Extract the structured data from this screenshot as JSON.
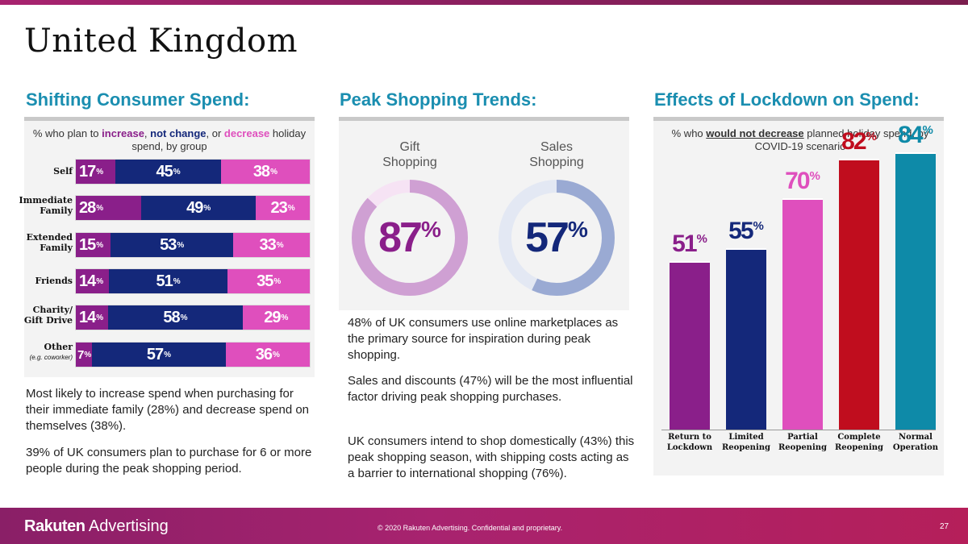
{
  "title": "United Kingdom",
  "sections": {
    "consumer_spend": "Shifting Consumer Spend:",
    "peak_trends": "Peak Shopping Trends:",
    "lockdown": "Effects of Lockdown on Spend:"
  },
  "colors": {
    "increase": "#8a1f8a",
    "not_change": "#14287a",
    "decrease": "#df4fbd",
    "accent_title": "#1a8eb0"
  },
  "subtitle_left": {
    "p1": "% who plan to ",
    "increase": "increase",
    "c1": ", ",
    "not_change": "not change",
    "c2": ", or ",
    "decrease": "decrease",
    "p2": " holiday spend, by group"
  },
  "subtitle_right": {
    "p1": "% who ",
    "would_not_decrease": "would not decrease",
    "p2": " planned holiday spend, by COVID-19 scenario"
  },
  "pct_symbol": "%",
  "left_text": [
    "Most likely to increase spend when purchasing for their immediate family (28%) and decrease spend on themselves (38%).",
    "39% of UK consumers plan to purchase for 6 or more people during the peak shopping period."
  ],
  "mid_text": [
    "48% of UK consumers use online marketplaces as the primary source for inspiration during peak shopping.",
    "Sales and discounts (47%) will be the most influential factor driving peak shopping purchases.",
    "UK consumers intend to shop domestically (43%) this peak shopping season, with shipping costs acting as a barrier to international shopping (76%)."
  ],
  "chart_data": [
    {
      "type": "bar",
      "orientation": "horizontal",
      "stacked": true,
      "title": "% who plan to increase, not change, or decrease holiday spend, by group",
      "categories": [
        "Self",
        "Immediate Family",
        "Extended Family",
        "Friends",
        "Charity/ Gift Drive",
        "Other"
      ],
      "category_notes": [
        "",
        "",
        "",
        "",
        "",
        "(e.g. coworker)"
      ],
      "series": [
        {
          "name": "increase",
          "values": [
            17,
            28,
            15,
            14,
            14,
            7
          ]
        },
        {
          "name": "not change",
          "values": [
            45,
            49,
            53,
            51,
            58,
            57
          ]
        },
        {
          "name": "decrease",
          "values": [
            38,
            23,
            33,
            35,
            29,
            36
          ]
        }
      ],
      "xlim": [
        0,
        100
      ]
    },
    {
      "type": "pie",
      "style": "donut",
      "title": "Peak Shopping Trends",
      "labels": [
        "Gift Shopping",
        "Sales Shopping"
      ],
      "values": [
        87,
        57
      ],
      "colors": [
        "#8a1f8a",
        "#14287a"
      ]
    },
    {
      "type": "bar",
      "orientation": "vertical",
      "title": "% who would not decrease planned holiday spend, by COVID-19 scenario",
      "categories": [
        "Return to Lockdown",
        "Limited Reopening",
        "Partial Reopening",
        "Complete Reopening",
        "Normal Operation"
      ],
      "values": [
        51,
        55,
        70,
        82,
        84
      ],
      "colors": [
        "#8a1f8a",
        "#14287a",
        "#df4fbd",
        "#c00d1e",
        "#0e8aa8"
      ],
      "ylim": [
        0,
        100
      ]
    }
  ],
  "footer": {
    "logo_bold": "Rakuten",
    "logo_rest": " Advertising",
    "copyright": "© 2020 Rakuten Advertising. Confidential and proprietary.",
    "page_number": "27"
  }
}
